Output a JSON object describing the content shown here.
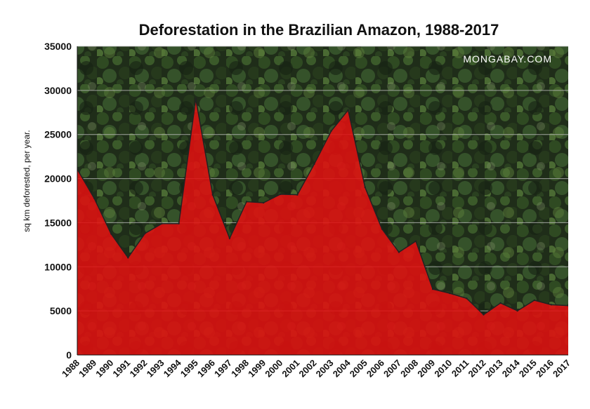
{
  "chart_data": {
    "type": "area",
    "title": "Deforestation in the Brazilian Amazon, 1988-2017",
    "ylabel": "sq km deforested, per year.",
    "xlabel": "",
    "watermark": "MONGABAY.COM",
    "ylim": [
      0,
      35000
    ],
    "yticks": [
      "0",
      "5000",
      "10000",
      "15000",
      "20000",
      "25000",
      "30000",
      "35000"
    ],
    "grid": true,
    "colors": {
      "area": "#e01010",
      "background": "#1d2a18",
      "grid": "#bfbfbf",
      "line": "#222222"
    },
    "categories": [
      "1988",
      "1989",
      "1990",
      "1991",
      "1992",
      "1993",
      "1994",
      "1995",
      "1996",
      "1997",
      "1998",
      "1999",
      "2000",
      "2001",
      "2002",
      "2003",
      "2004",
      "2005",
      "2006",
      "2007",
      "2008",
      "2009",
      "2010",
      "2011",
      "2012",
      "2013",
      "2014",
      "2015",
      "2016",
      "2017"
    ],
    "values": [
      21050,
      17770,
      13730,
      11030,
      13786,
      14896,
      14896,
      29059,
      18161,
      13227,
      17383,
      17259,
      18226,
      18165,
      21651,
      25396,
      27772,
      19014,
      14286,
      11651,
      12911,
      7464,
      7000,
      6418,
      4571,
      5891,
      5012,
      6207,
      5700,
      5600
    ]
  }
}
